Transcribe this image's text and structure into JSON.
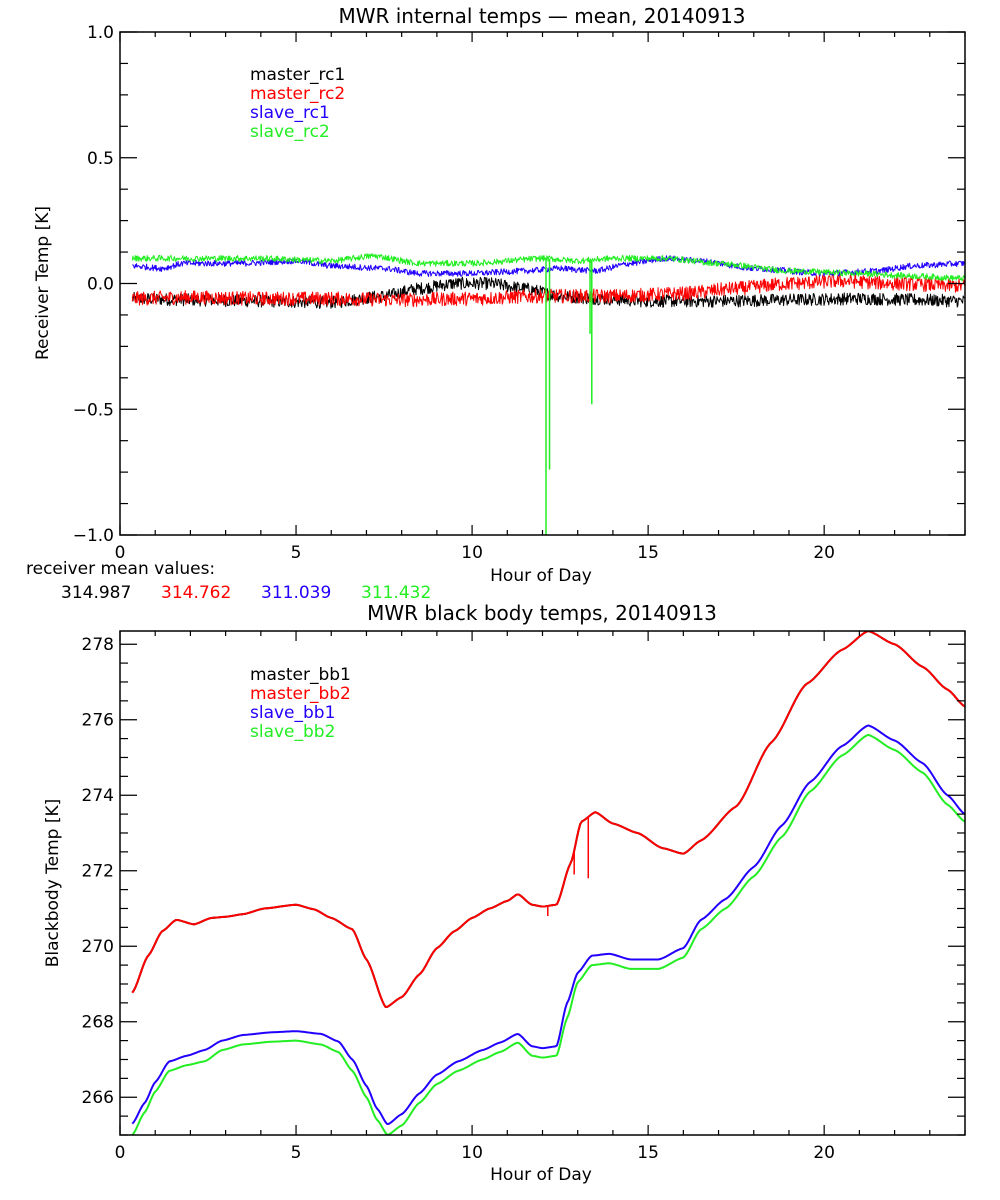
{
  "chart_data": [
    {
      "type": "line",
      "title": "MWR internal temps — mean, 20140913",
      "xlabel": "Hour of Day",
      "ylabel": "Receiver Temp [K]",
      "xlim": [
        0,
        24
      ],
      "ylim": [
        -1.0,
        1.0
      ],
      "x_ticks": [
        0,
        5,
        10,
        15,
        20
      ],
      "x_tick_labels": [
        "0",
        "5",
        "10",
        "15",
        "20"
      ],
      "y_ticks": [
        -1.0,
        -0.5,
        0.0,
        0.5,
        1.0
      ],
      "y_tick_labels": [
        "−1.0",
        "−0.5",
        "0.0",
        "0.5",
        "1.0"
      ],
      "grid": false,
      "legend_position": "top-left",
      "annotation_label": "receiver mean values:",
      "series": [
        {
          "name": "master_rc1",
          "color": "#000000",
          "noise": 0.025,
          "mean_value": "314.987",
          "x": [
            0.35,
            2,
            4,
            6,
            7.5,
            8.5,
            9.5,
            10.5,
            11.5,
            12.5,
            13.5,
            15,
            17,
            19,
            21,
            22.5,
            24
          ],
          "y": [
            -0.06,
            -0.065,
            -0.07,
            -0.075,
            -0.05,
            -0.02,
            0.0,
            0.0,
            -0.02,
            -0.05,
            -0.06,
            -0.07,
            -0.07,
            -0.065,
            -0.06,
            -0.065,
            -0.07
          ]
        },
        {
          "name": "master_rc2",
          "color": "#ff0000",
          "noise": 0.028,
          "mean_value": "314.762",
          "x": [
            0.35,
            2,
            4,
            6,
            8,
            10,
            12,
            14,
            16,
            17.5,
            19,
            20.5,
            22,
            24
          ],
          "y": [
            -0.06,
            -0.055,
            -0.06,
            -0.06,
            -0.065,
            -0.06,
            -0.05,
            -0.05,
            -0.04,
            -0.02,
            0.0,
            0.01,
            0.0,
            -0.01
          ]
        },
        {
          "name": "slave_rc1",
          "color": "#2200ff",
          "noise": 0.012,
          "mean_value": "311.039",
          "x": [
            0.35,
            1.2,
            1.8,
            2.5,
            3.5,
            5,
            6,
            7.5,
            8.5,
            10,
            11.5,
            12.5,
            13.5,
            14.5,
            15.5,
            16.5,
            18,
            20,
            21.5,
            22.5,
            24
          ],
          "y": [
            0.07,
            0.06,
            0.08,
            0.08,
            0.08,
            0.09,
            0.07,
            0.06,
            0.04,
            0.04,
            0.05,
            0.06,
            0.05,
            0.08,
            0.1,
            0.09,
            0.06,
            0.04,
            0.05,
            0.07,
            0.08
          ]
        },
        {
          "name": "slave_rc2",
          "color": "#22ee22",
          "noise": 0.012,
          "mean_value": "311.432",
          "x": [
            0.35,
            2,
            4,
            6,
            7.2,
            8.5,
            10,
            12,
            13,
            14,
            15.5,
            17,
            19,
            21,
            22.5,
            24
          ],
          "y": [
            0.1,
            0.1,
            0.1,
            0.09,
            0.11,
            0.08,
            0.08,
            0.1,
            0.09,
            0.1,
            0.1,
            0.08,
            0.05,
            0.04,
            0.03,
            0.02
          ]
        }
      ],
      "spikes": [
        {
          "series": "slave_rc2",
          "x": 12.1,
          "y": -1.0
        },
        {
          "series": "slave_rc2",
          "x": 12.2,
          "y": -0.74
        },
        {
          "series": "slave_rc2",
          "x": 13.35,
          "y": -0.2
        },
        {
          "series": "slave_rc2",
          "x": 13.4,
          "y": -0.48
        }
      ]
    },
    {
      "type": "line",
      "title": "MWR black body temps, 20140913",
      "xlabel": "Hour of Day",
      "ylabel": "Blackbody Temp [K]",
      "xlim": [
        0,
        24
      ],
      "ylim": [
        265.0,
        278.35
      ],
      "x_ticks": [
        0,
        5,
        10,
        15,
        20
      ],
      "x_tick_labels": [
        "0",
        "5",
        "10",
        "15",
        "20"
      ],
      "y_ticks": [
        266,
        268,
        270,
        272,
        274,
        276,
        278
      ],
      "y_tick_labels": [
        "266",
        "268",
        "270",
        "272",
        "274",
        "276",
        "278"
      ],
      "grid": false,
      "legend_position": "top-left",
      "series": [
        {
          "name": "master_bb1",
          "color": "#000000",
          "x": [
            0.35,
            0.8,
            1.2,
            1.6,
            2.1,
            2.6,
            3.0,
            3.5,
            4.1,
            5.0,
            5.5,
            6.0,
            6.6,
            7.0,
            7.55,
            8.0,
            8.5,
            9.0,
            9.5,
            10.0,
            10.5,
            11.0,
            11.3,
            11.7,
            12.0,
            12.4,
            12.8,
            13.1,
            13.5,
            14.0,
            14.7,
            15.4,
            16.0,
            16.5,
            17.5,
            18.5,
            19.5,
            20.5,
            21.25,
            22.0,
            22.8,
            23.5,
            24.0
          ],
          "y": [
            268.77,
            269.75,
            270.4,
            270.7,
            270.58,
            270.75,
            270.78,
            270.85,
            271.0,
            271.1,
            270.98,
            270.75,
            270.45,
            269.65,
            268.38,
            268.65,
            269.25,
            269.95,
            270.4,
            270.75,
            271.0,
            271.2,
            271.38,
            271.1,
            271.05,
            271.1,
            272.2,
            273.3,
            273.55,
            273.25,
            273.0,
            272.6,
            272.45,
            272.8,
            273.7,
            275.4,
            276.95,
            277.85,
            278.35,
            278.0,
            277.4,
            276.8,
            276.35
          ]
        },
        {
          "name": "master_bb2",
          "color": "#ff0000",
          "x": [
            0.35,
            0.8,
            1.2,
            1.6,
            2.1,
            2.6,
            3.0,
            3.5,
            4.1,
            5.0,
            5.5,
            6.0,
            6.6,
            7.0,
            7.55,
            8.0,
            8.5,
            9.0,
            9.5,
            10.0,
            10.5,
            11.0,
            11.3,
            11.7,
            12.0,
            12.4,
            12.8,
            13.1,
            13.5,
            14.0,
            14.7,
            15.4,
            16.0,
            16.5,
            17.5,
            18.5,
            19.5,
            20.5,
            21.25,
            22.0,
            22.8,
            23.5,
            24.0
          ],
          "y": [
            268.77,
            269.75,
            270.4,
            270.7,
            270.58,
            270.75,
            270.78,
            270.85,
            271.0,
            271.1,
            270.98,
            270.75,
            270.45,
            269.65,
            268.38,
            268.65,
            269.25,
            269.95,
            270.4,
            270.75,
            271.0,
            271.2,
            271.38,
            271.1,
            271.05,
            271.1,
            272.2,
            273.3,
            273.55,
            273.25,
            273.0,
            272.6,
            272.45,
            272.8,
            273.7,
            275.4,
            276.95,
            277.85,
            278.35,
            278.0,
            277.4,
            276.8,
            276.35
          ]
        },
        {
          "name": "slave_bb1",
          "color": "#2200ff",
          "x": [
            0.35,
            0.7,
            1.0,
            1.4,
            1.9,
            2.4,
            2.9,
            3.5,
            4.3,
            5.0,
            5.7,
            6.2,
            6.6,
            7.0,
            7.3,
            7.6,
            8.0,
            8.5,
            9.0,
            9.6,
            10.3,
            10.8,
            11.3,
            11.7,
            12.0,
            12.4,
            12.7,
            13.0,
            13.4,
            13.9,
            14.5,
            15.3,
            16.0,
            16.5,
            17.2,
            18.0,
            18.8,
            19.6,
            20.5,
            21.25,
            22.0,
            22.8,
            23.5,
            24.0
          ],
          "y": [
            265.3,
            265.85,
            266.4,
            266.95,
            267.1,
            267.25,
            267.5,
            267.65,
            267.72,
            267.75,
            267.68,
            267.48,
            267.0,
            266.3,
            265.7,
            265.28,
            265.55,
            266.1,
            266.6,
            266.95,
            267.25,
            267.45,
            267.68,
            267.35,
            267.3,
            267.35,
            268.5,
            269.3,
            269.75,
            269.8,
            269.65,
            269.65,
            269.95,
            270.7,
            271.25,
            272.1,
            273.2,
            274.35,
            275.3,
            275.85,
            275.45,
            274.85,
            274.0,
            273.5
          ]
        },
        {
          "name": "slave_bb2",
          "color": "#22ee22",
          "x": [
            0.35,
            0.7,
            1.0,
            1.4,
            1.9,
            2.4,
            2.9,
            3.5,
            4.3,
            5.0,
            5.7,
            6.2,
            6.6,
            7.0,
            7.3,
            7.6,
            8.0,
            8.5,
            9.0,
            9.6,
            10.3,
            10.8,
            11.3,
            11.7,
            12.0,
            12.4,
            12.7,
            13.0,
            13.4,
            13.9,
            14.5,
            15.3,
            16.0,
            16.5,
            17.2,
            18.0,
            18.8,
            19.6,
            20.5,
            21.25,
            22.0,
            22.8,
            23.5,
            24.0
          ],
          "y": [
            265.0,
            265.6,
            266.15,
            266.7,
            266.85,
            266.95,
            267.25,
            267.4,
            267.47,
            267.5,
            267.4,
            267.2,
            266.7,
            266.0,
            265.4,
            265.0,
            265.25,
            265.85,
            266.35,
            266.7,
            267.0,
            267.2,
            267.45,
            267.1,
            267.05,
            267.1,
            268.1,
            269.05,
            269.5,
            269.55,
            269.4,
            269.4,
            269.7,
            270.45,
            271.0,
            271.85,
            272.9,
            274.1,
            275.05,
            275.6,
            275.2,
            274.6,
            273.75,
            273.3
          ]
        }
      ],
      "spikes": [
        {
          "series": "master_bb2",
          "x": 12.15,
          "y": 270.8
        },
        {
          "series": "master_bb2",
          "x": 12.9,
          "y": 271.9
        },
        {
          "series": "master_bb2",
          "x": 13.3,
          "y": 271.8
        }
      ]
    }
  ]
}
